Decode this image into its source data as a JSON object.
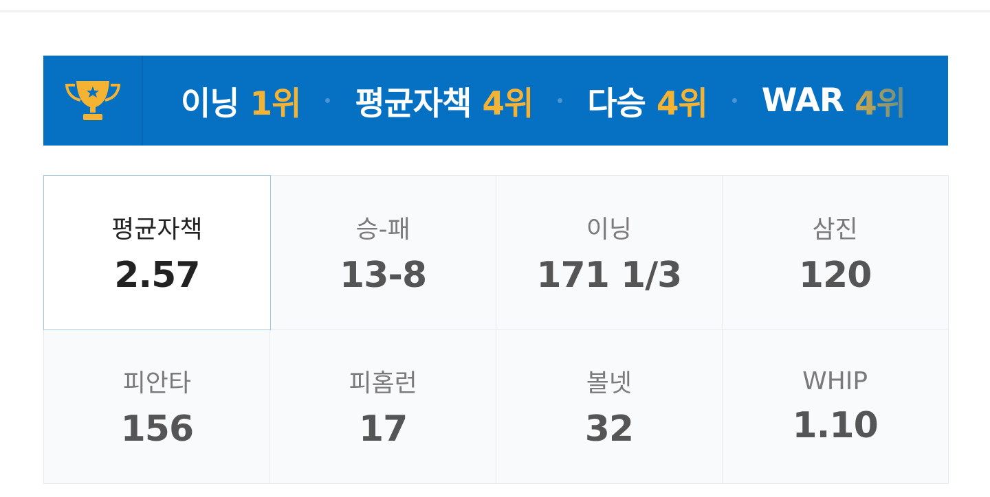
{
  "banner": {
    "icon": "trophy-icon",
    "ranks": [
      {
        "name": "이닝",
        "rank": "1위"
      },
      {
        "name": "평균자책",
        "rank": "4위"
      },
      {
        "name": "다승",
        "rank": "4위"
      },
      {
        "name": "WAR",
        "rank": "4위"
      }
    ]
  },
  "stats": [
    {
      "label": "평균자책",
      "value": "2.57",
      "selected": true
    },
    {
      "label": "승-패",
      "value": "13-8"
    },
    {
      "label": "이닝",
      "value": "171 1/3"
    },
    {
      "label": "삼진",
      "value": "120"
    },
    {
      "label": "피안타",
      "value": "156"
    },
    {
      "label": "피홈런",
      "value": "17"
    },
    {
      "label": "볼넷",
      "value": "32"
    },
    {
      "label": "WHIP",
      "value": "1.10"
    }
  ],
  "colors": {
    "banner": "#0670c3",
    "rank_accent": "#f5b334",
    "selected_border": "#9fc7de"
  }
}
